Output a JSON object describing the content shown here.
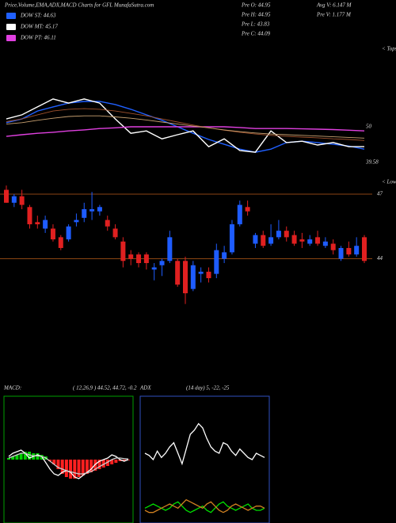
{
  "header": {
    "title": "Price,Volume,EMA,ADX,MACD Charts for GFL  MunafaSutra.com",
    "stats": [
      [
        "Pre O: 44.95",
        "Pre H: 44.95",
        "Pre L: 43.83",
        "Pre C: 44.09"
      ],
      [
        "Avg V: 6.147 M",
        "Pre V: 1.177 M"
      ]
    ]
  },
  "chart_data": [
    {
      "type": "line",
      "annotation": "< Tops",
      "ylim": [
        37.3,
        73.1
      ],
      "yticks": [
        50,
        39.58
      ],
      "series": [
        {
          "name": "DOW ST: 44.63",
          "color": "#2060ff",
          "values": [
            51.2,
            52.3,
            54.6,
            55.8,
            56.9,
            57.4,
            57.4,
            56.5,
            55.1,
            53.5,
            51.9,
            50,
            48.1,
            46.3,
            44.9,
            43.5,
            42.6,
            43.5,
            45.4,
            45.8,
            45.4,
            44.9,
            44.4,
            43.5
          ]
        },
        {
          "name": "DOW MT: 45.17",
          "color": "#ffffff",
          "values": [
            52.3,
            53.5,
            55.8,
            58.1,
            56.9,
            58.1,
            56.9,
            52.3,
            48.1,
            48.8,
            46.5,
            47.7,
            48.8,
            44.2,
            46.5,
            43.1,
            42.6,
            48.8,
            45.4,
            45.8,
            44.7,
            45.4,
            44.2,
            44.2
          ]
        },
        {
          "name": "DOW PT: 46.11",
          "color": "#e040e0",
          "values": [
            47.2,
            47.7,
            48.1,
            48.4,
            48.8,
            49.1,
            49.5,
            49.7,
            50,
            50,
            50,
            50,
            50,
            50,
            50,
            49.8,
            49.5,
            49.5,
            49.5,
            49.4,
            49.3,
            49.2,
            49,
            48.8
          ]
        },
        {
          "color": "#a0522d",
          "values": [
            51.5,
            52.3,
            53.5,
            54.6,
            55.1,
            55.3,
            55.1,
            54.6,
            53.9,
            53.2,
            52.3,
            51.4,
            50.5,
            49.7,
            49,
            48.4,
            47.9,
            47.5,
            47.2,
            47,
            46.8,
            46.5,
            46.3,
            46
          ]
        },
        {
          "color": "#c8a070",
          "values": [
            50.8,
            51.2,
            51.9,
            52.5,
            53,
            53.2,
            53.2,
            52.9,
            52.5,
            52,
            51.4,
            50.8,
            50.2,
            49.7,
            49.1,
            48.6,
            48.2,
            47.9,
            47.7,
            47.5,
            47.3,
            47.1,
            46.9,
            46.7
          ]
        }
      ]
    },
    {
      "type": "candlestick",
      "annotation": "< Lows",
      "ylim": [
        41.3,
        47.55
      ],
      "yticks": [
        47,
        44
      ],
      "grid": true,
      "up_color": "#1e5cff",
      "down_color": "#e02020",
      "grid_color": "#8b4513",
      "open": [
        47.2,
        46.6,
        46.9,
        46.4,
        45.7,
        45.4,
        45.4,
        45.0,
        44.9,
        45.7,
        45.9,
        46.2,
        46.2,
        45.8,
        45.4,
        44.8,
        44.2,
        44.2,
        44.2,
        43.5,
        43.7,
        43.9,
        43.9,
        43.9,
        42.6,
        43.3,
        43.4,
        43.3,
        44.0,
        44.3,
        45.6,
        46.4,
        44.7,
        45.1,
        44.7,
        45.0,
        45.3,
        45.1,
        44.9,
        44.7,
        45.0,
        44.6,
        44.7,
        44.0,
        44.5,
        44.2,
        45.0
      ],
      "high": [
        47.4,
        47.0,
        47.2,
        46.5,
        46.0,
        46.0,
        45.6,
        45.1,
        45.6,
        46.1,
        46.6,
        47.1,
        46.5,
        46.0,
        45.6,
        45.0,
        44.4,
        44.3,
        44.3,
        43.8,
        44.0,
        45.3,
        44.0,
        44.1,
        43.9,
        43.6,
        43.6,
        44.7,
        44.6,
        45.8,
        46.7,
        46.7,
        45.2,
        45.3,
        45.6,
        45.8,
        45.5,
        45.3,
        45.2,
        45.1,
        45.3,
        45.0,
        44.9,
        44.6,
        44.8,
        45.0,
        45.1
      ],
      "low": [
        46.6,
        46.4,
        46.3,
        45.4,
        45.4,
        45.2,
        44.8,
        44.4,
        44.8,
        45.5,
        45.7,
        45.8,
        46.0,
        45.3,
        44.9,
        43.6,
        43.7,
        43.6,
        43.5,
        43.0,
        43.2,
        43.8,
        42.7,
        41.9,
        42.5,
        42.9,
        42.9,
        43.1,
        43.8,
        44.2,
        45.5,
        46.0,
        44.5,
        44.5,
        44.6,
        44.9,
        44.8,
        44.6,
        44.5,
        44.6,
        44.6,
        44.5,
        44.2,
        43.9,
        44.1,
        44.1,
        43.8
      ],
      "close": [
        46.6,
        46.9,
        46.5,
        45.6,
        45.6,
        45.8,
        44.9,
        44.5,
        45.5,
        45.8,
        46.3,
        46.3,
        46.4,
        45.5,
        45.0,
        43.9,
        44.0,
        43.8,
        43.8,
        43.6,
        43.9,
        45.0,
        42.8,
        42.4,
        43.7,
        43.4,
        43.1,
        44.4,
        44.3,
        45.6,
        46.5,
        46.2,
        45.1,
        44.6,
        45.0,
        45.3,
        45.0,
        44.7,
        44.8,
        44.9,
        44.7,
        44.8,
        44.4,
        44.5,
        44.2,
        44.6,
        43.9
      ]
    },
    {
      "type": "macd",
      "title": "MACD:",
      "subtitle": "( 12,26,9 ) 44.52, 44.72, -0.2",
      "ylim": [
        -2,
        2
      ],
      "border_color": "#00a000",
      "up_color": "#00d000",
      "down_color": "#ff2020",
      "series": [
        {
          "kind": "bar",
          "values": [
            0.05,
            0.1,
            0.15,
            0.2,
            0.25,
            0.25,
            0.2,
            0.2,
            0.15,
            0.1,
            -0.05,
            -0.15,
            -0.3,
            -0.45,
            -0.55,
            -0.6,
            -0.6,
            -0.55,
            -0.5,
            -0.45,
            -0.4,
            -0.35,
            -0.3,
            -0.25,
            -0.2,
            -0.15,
            -0.1,
            -0.05,
            -0.03,
            -0.02
          ]
        },
        {
          "kind": "line",
          "color": "#ffffff",
          "values": [
            0.1,
            0.2,
            0.25,
            0.3,
            0.2,
            0.05,
            0.1,
            0.15,
            0.1,
            -0.1,
            -0.3,
            -0.45,
            -0.5,
            -0.4,
            -0.35,
            -0.4,
            -0.55,
            -0.6,
            -0.5,
            -0.4,
            -0.3,
            -0.15,
            -0.05,
            0,
            0.05,
            0.15,
            0.1,
            0,
            -0.05,
            0
          ]
        },
        {
          "kind": "line",
          "color": "#cccccc",
          "values": [
            0.05,
            0.1,
            0.15,
            0.2,
            0.2,
            0.15,
            0.12,
            0.12,
            0.1,
            0.05,
            -0.05,
            -0.15,
            -0.25,
            -0.3,
            -0.35,
            -0.38,
            -0.42,
            -0.45,
            -0.45,
            -0.42,
            -0.38,
            -0.3,
            -0.22,
            -0.15,
            -0.08,
            0,
            0.05,
            0.05,
            0.03,
            0.02
          ]
        }
      ]
    },
    {
      "type": "adx",
      "title": "ADX",
      "subtitle": "(14 day) 5, -22, -25",
      "ylim": [
        0,
        60
      ],
      "border_color": "#3050c0",
      "series": [
        {
          "kind": "line",
          "color": "#ffffff",
          "values": [
            33,
            32,
            30,
            34,
            31,
            33,
            36,
            38,
            33,
            28,
            35,
            42,
            44,
            47,
            45,
            40,
            36,
            34,
            33,
            38,
            37,
            34,
            32,
            35,
            33,
            31,
            30,
            33,
            32,
            31
          ]
        },
        {
          "kind": "line",
          "color": "#00e000",
          "values": [
            7,
            8,
            9,
            8,
            7,
            6,
            7,
            9,
            10,
            8,
            6,
            5,
            6,
            7,
            8,
            6,
            5,
            7,
            9,
            10,
            8,
            7,
            6,
            7,
            8,
            9,
            7,
            6,
            6,
            7
          ]
        },
        {
          "kind": "line",
          "color": "#d08020",
          "values": [
            6,
            5,
            5,
            6,
            7,
            8,
            9,
            8,
            7,
            9,
            11,
            10,
            9,
            8,
            7,
            9,
            10,
            8,
            6,
            5,
            6,
            8,
            9,
            8,
            7,
            6,
            7,
            8,
            8,
            7
          ]
        }
      ]
    }
  ]
}
